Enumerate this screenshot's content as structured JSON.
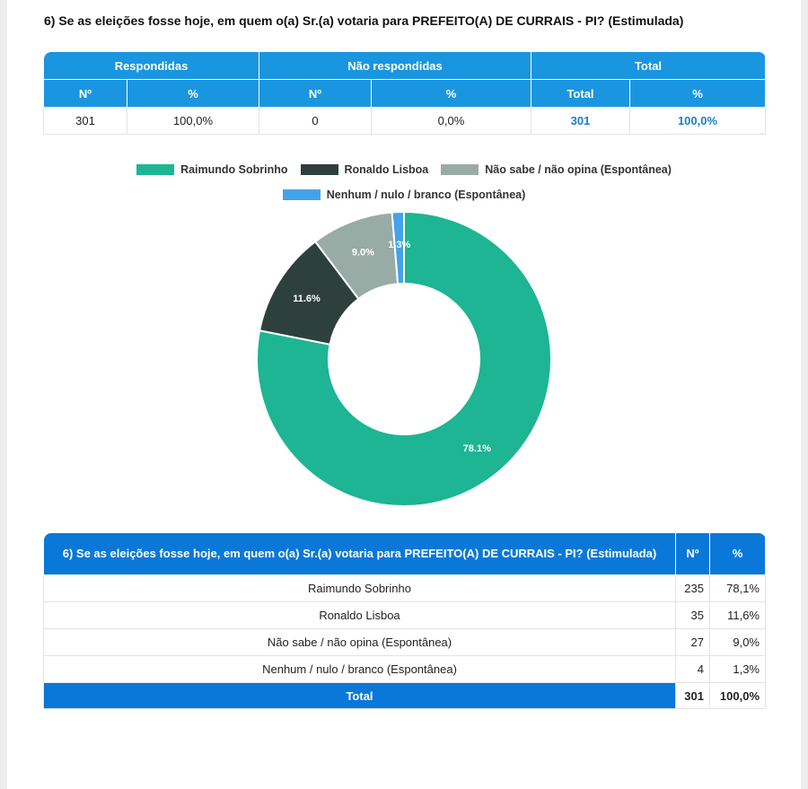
{
  "question": "6) Se as eleições fosse hoje, em quem o(a) Sr.(a) votaria para PREFEITO(A) DE CURRAIS - PI? (Estimulada)",
  "summary": {
    "groups": [
      "Respondidas",
      "Não respondidas",
      "Total"
    ],
    "subheaders": [
      "Nº",
      "%",
      "Nº",
      "%",
      "Total",
      "%"
    ],
    "values": [
      "301",
      "100,0%",
      "0",
      "0,0%",
      "301",
      "100,0%"
    ]
  },
  "colors": {
    "header_light": "#1a96e0",
    "header_dark": "#0a78d8",
    "accent_text": "#1a7fc9"
  },
  "chart_data": {
    "type": "pie",
    "variant": "donut",
    "series": [
      {
        "name": "Raimundo Sobrinho",
        "value": 78.1,
        "label": "78.1%",
        "color": "#1db593"
      },
      {
        "name": "Ronaldo Lisboa",
        "value": 11.6,
        "label": "11.6%",
        "color": "#2e403b"
      },
      {
        "name": "Não sabe / não opina (Espontânea)",
        "value": 9.0,
        "label": "9.0%",
        "color": "#98aba5"
      },
      {
        "name": "Nenhum / nulo / branco (Espontânea)",
        "value": 1.3,
        "label": "1.3%",
        "color": "#43a3ea"
      }
    ],
    "legend_position": "top"
  },
  "detail": {
    "title": "6) Se as eleições fosse hoje, em quem o(a) Sr.(a) votaria para PREFEITO(A) DE CURRAIS - PI? (Estimulada)",
    "col_n": "Nº",
    "col_pct": "%",
    "rows": [
      {
        "label": "Raimundo Sobrinho",
        "n": "235",
        "pct": "78,1%"
      },
      {
        "label": "Ronaldo Lisboa",
        "n": "35",
        "pct": "11,6%"
      },
      {
        "label": "Não sabe / não opina (Espontânea)",
        "n": "27",
        "pct": "9,0%"
      },
      {
        "label": "Nenhum / nulo / branco (Espontânea)",
        "n": "4",
        "pct": "1,3%"
      }
    ],
    "total": {
      "label": "Total",
      "n": "301",
      "pct": "100,0%"
    }
  }
}
